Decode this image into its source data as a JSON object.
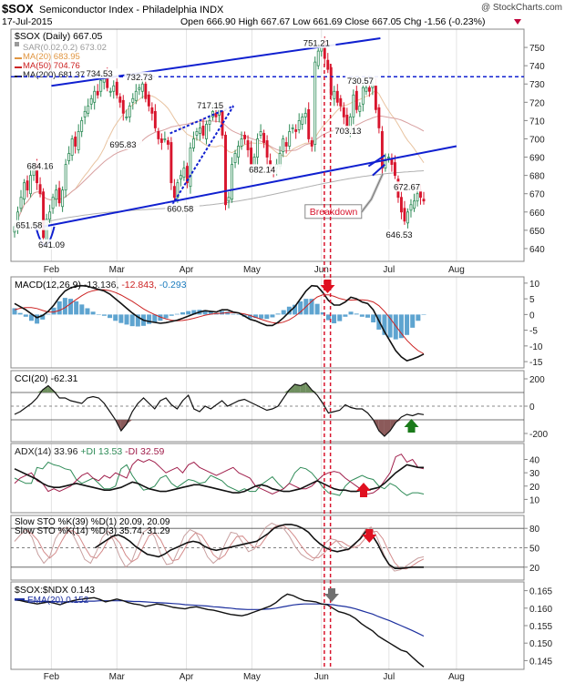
{
  "header": {
    "symbol": "$SOX",
    "name": "Semiconductor Index - Philadelphia  INDX",
    "date": "17-Jul-2015",
    "ohlc": "Open 666.90  High 667.67  Low 661.69  Close 667.05  Chg -1.56 (-0.23%)",
    "watermark": "@ StockCharts.com"
  },
  "colors": {
    "candle_up": "#2e8b57",
    "candle_down": "#d8152d",
    "trendline": "#1020d0",
    "annotation": "#d8152d",
    "macd_hist": "#5ea4d0",
    "cci_fill_pos": "#6f8f5f",
    "cci_fill_neg": "#8b5a5a",
    "plus_di": "#2e8b57",
    "minus_di": "#a01e4b",
    "ema": "#1c2f9e",
    "sto_slow": "#7a0000",
    "sto_signal": "#d48a8a"
  },
  "chart_data": [
    {
      "type": "candlestick",
      "title": "$SOX (Daily) 667.05",
      "legend": [
        {
          "text": "SAR(0.02,0.2) 673.02",
          "color": "#999999"
        },
        {
          "text": "MA(20) 683.95",
          "color": "#e09540"
        },
        {
          "text": "MA(50) 704.76",
          "color": "#cc2222"
        },
        {
          "text": "MA(200) 681.37",
          "color": "#222222"
        }
      ],
      "x_ticks": [
        "Feb",
        "Mar",
        "Apr",
        "May",
        "Jun",
        "Jul",
        "Aug"
      ],
      "ylim": [
        633,
        760
      ],
      "y_ticks": [
        640,
        650,
        660,
        670,
        680,
        690,
        700,
        710,
        720,
        730,
        740,
        750
      ],
      "price_labels": [
        "651.58",
        "684.16",
        "641.09",
        "734.53",
        "732.73",
        "695.83",
        "717.15",
        "660.58",
        "682.14",
        "751.21",
        "730.57",
        "703.13",
        "672.67",
        "646.53"
      ],
      "annotations": [
        "Breakdown"
      ],
      "horizontal_line": 734,
      "closes": [
        652,
        660,
        668,
        676,
        672,
        680,
        684,
        676,
        670,
        646,
        656,
        660,
        668,
        672,
        665,
        672,
        686,
        692,
        700,
        696,
        704,
        710,
        715,
        718,
        722,
        726,
        724,
        732,
        734,
        728,
        726,
        729,
        724,
        720,
        714,
        712,
        718,
        722,
        726,
        728,
        730,
        722,
        718,
        714,
        706,
        700,
        698,
        700,
        697,
        676,
        668,
        676,
        680,
        684,
        676,
        695,
        700,
        704,
        706,
        702,
        708,
        710,
        715,
        712,
        717,
        702,
        664,
        668,
        686,
        692,
        696,
        700,
        700,
        694,
        686,
        690,
        700,
        704,
        698,
        690,
        684,
        682,
        686,
        692,
        700,
        696,
        704,
        706,
        704,
        710,
        712,
        714,
        700,
        696,
        742,
        748,
        751,
        744,
        738,
        724,
        726,
        720,
        718,
        712,
        706,
        712,
        724,
        716,
        718,
        728,
        728,
        726,
        730,
        716,
        706,
        684,
        688,
        690,
        686,
        680,
        668,
        660,
        655,
        660,
        664,
        666,
        670,
        668,
        666
      ]
    },
    {
      "type": "line",
      "title": "MACD(12,26,9)",
      "values_text": "-13.136, -12.843, -0.293",
      "value_colors": [
        "#222222",
        "#cc2222",
        "#1a7bbd"
      ],
      "series": [
        {
          "name": "MACD"
        },
        {
          "name": "Signal"
        },
        {
          "name": "Histogram"
        }
      ],
      "ylim": [
        -17,
        12
      ],
      "y_ticks": [
        10,
        5,
        0,
        -5,
        -10,
        -15
      ],
      "macd": [
        3.5,
        2.5,
        1.5,
        0.2,
        -1,
        -0.3,
        1,
        3,
        5.5,
        7.5,
        8.5,
        9,
        9.2,
        9,
        8.5,
        8,
        7.5,
        6.5,
        5,
        3.5,
        2,
        0.5,
        -0.8,
        -1.8,
        -2.2,
        -2.5,
        -2.8,
        -2.6,
        -2.2,
        -1.8,
        -1.2,
        -0.5,
        0.2,
        0.8,
        1.2,
        1,
        0.8,
        1.5,
        1.5,
        0.8,
        0.5,
        -0.5,
        -1.5,
        -2,
        -2.8,
        -3.5,
        -3.5,
        -2.5,
        -1,
        0.8,
        2.5,
        5,
        7.5,
        9.2,
        9,
        7,
        4.5,
        3,
        3,
        4,
        5.5,
        5,
        4,
        3.5,
        1.5,
        -2,
        -5.5,
        -8.5,
        -11.5,
        -13.5,
        -14.7,
        -14.2,
        -13.5,
        -12.6
      ],
      "signal": [
        1.5,
        2,
        2.2,
        2.2,
        1.9,
        1.3,
        0.8,
        0.8,
        1.3,
        2.2,
        3.5,
        4.8,
        6,
        7,
        7.6,
        7.9,
        7.9,
        7.6,
        7,
        6.2,
        5.2,
        4.2,
        3,
        1.8,
        0.8,
        0,
        -0.8,
        -1.4,
        -1.8,
        -2,
        -1.9,
        -1.6,
        -1.2,
        -0.7,
        -0.2,
        0.1,
        0.3,
        0.4,
        0.6,
        0.6,
        0.5,
        0.2,
        -0.3,
        -0.9,
        -1.5,
        -2.1,
        -2.6,
        -2.8,
        -2.4,
        -1.7,
        -0.6,
        0.8,
        2.5,
        4.2,
        5.6,
        6.3,
        6.3,
        5.8,
        5.1,
        4.7,
        4.6,
        4.7,
        4.7,
        4.5,
        4,
        2.8,
        1,
        -1.2,
        -3.6,
        -6,
        -8.2,
        -10,
        -11.5,
        -12.5
      ]
    },
    {
      "type": "line",
      "title": "CCI(20)",
      "values_text": "-62.31",
      "ylim": [
        -260,
        260
      ],
      "y_ticks": [
        200,
        0,
        -200
      ],
      "reference_lines": [
        100,
        -100
      ],
      "series": [
        {
          "name": "CCI",
          "values": [
            -60,
            -40,
            -10,
            20,
            60,
            120,
            150,
            110,
            60,
            60,
            40,
            30,
            20,
            60,
            70,
            60,
            20,
            -40,
            -100,
            -180,
            -130,
            -40,
            20,
            60,
            20,
            -20,
            40,
            60,
            10,
            -20,
            40,
            80,
            -20,
            -40,
            0,
            -20,
            10,
            40,
            0,
            20,
            40,
            50,
            30,
            10,
            -10,
            -30,
            -20,
            0,
            60,
            120,
            160,
            150,
            170,
            120,
            80,
            20,
            -50,
            -40,
            -30,
            10,
            -10,
            -20,
            -20,
            -50,
            -100,
            -180,
            -220,
            -180,
            -120,
            -80,
            -60,
            -70,
            -55,
            -62
          ]
        }
      ]
    },
    {
      "type": "line",
      "title": "ADX(14)",
      "values_text": "ADX(14) 33.96  +DI 13.53  -DI 32.59",
      "value_colors": [
        "#222222",
        "#2e8b57",
        "#a01e4b"
      ],
      "series": [
        {
          "name": "ADX",
          "values": [
            33,
            31,
            29,
            27,
            25,
            22,
            20,
            19,
            19,
            20,
            21,
            22,
            21,
            20,
            19,
            18,
            17,
            17,
            18,
            19,
            21,
            23,
            22,
            20,
            18,
            17,
            16,
            16,
            17,
            18,
            19,
            20,
            21,
            21,
            20,
            19,
            18,
            17,
            16,
            15,
            15,
            16,
            18,
            20,
            21,
            20,
            18,
            17,
            16,
            16,
            17,
            18,
            20,
            22,
            24,
            22,
            20,
            18,
            17,
            17,
            16,
            16,
            17,
            17,
            18,
            19,
            22,
            26,
            30,
            33,
            36,
            35,
            34,
            34
          ]
        },
        {
          "name": "+DI",
          "values": [
            26,
            24,
            22,
            22,
            34,
            33,
            38,
            36,
            35,
            33,
            32,
            25,
            22,
            24,
            26,
            22,
            18,
            18,
            20,
            33,
            36,
            28,
            22,
            17,
            18,
            20,
            26,
            28,
            22,
            19,
            22,
            25,
            24,
            22,
            23,
            28,
            26,
            24,
            20,
            18,
            16,
            18,
            16,
            16,
            21,
            24,
            27,
            22,
            18,
            22,
            30,
            34,
            33,
            30,
            25,
            19,
            15,
            14,
            13,
            20,
            24,
            26,
            28,
            26,
            25,
            20,
            18,
            22,
            20,
            16,
            13,
            15,
            15,
            14
          ]
        },
        {
          "name": "-DI",
          "values": [
            22,
            26,
            28,
            30,
            24,
            22,
            16,
            18,
            16,
            18,
            20,
            24,
            28,
            30,
            26,
            24,
            28,
            26,
            30,
            28,
            26,
            36,
            40,
            38,
            40,
            38,
            34,
            30,
            32,
            34,
            30,
            36,
            38,
            34,
            32,
            30,
            28,
            30,
            32,
            34,
            30,
            28,
            26,
            20,
            18,
            16,
            14,
            16,
            18,
            22,
            20,
            18,
            18,
            20,
            24,
            28,
            30,
            31,
            30,
            26,
            23,
            20,
            17,
            14,
            15,
            18,
            24,
            30,
            42,
            44,
            38,
            40,
            34,
            33
          ]
        }
      ],
      "ylim": [
        0,
        52
      ],
      "y_ticks": [
        40,
        30,
        20,
        10
      ]
    },
    {
      "type": "line",
      "title": "Slow STO",
      "values_text": "Slow STO %K(39) %D(1) 20.09, 20.09",
      "values_text_2": "Slow STO %K(14) %D(3) 35.74, 31.29",
      "value_colors": [
        "#7a0000",
        "#d48a8a"
      ],
      "ylim": [
        0,
        100
      ],
      "y_ticks": [
        80,
        50,
        20
      ],
      "reference_lines": [
        80,
        50,
        20
      ],
      "series": [
        {
          "name": "%K(39)",
          "values": [
            null,
            null,
            null,
            null,
            null,
            null,
            null,
            null,
            null,
            null,
            null,
            null,
            null,
            null,
            50,
            56,
            62,
            68,
            70,
            66,
            60,
            52,
            46,
            40,
            38,
            36,
            40,
            46,
            50,
            54,
            58,
            60,
            58,
            52,
            48,
            46,
            48,
            50,
            52,
            54,
            56,
            58,
            60,
            66,
            72,
            80,
            84,
            86,
            86,
            84,
            80,
            74,
            64,
            56,
            50,
            46,
            44,
            46,
            48,
            56,
            64,
            76,
            70,
            56,
            38,
            24,
            18,
            18,
            19,
            20,
            20,
            20
          ]
        },
        {
          "name": "%K(14)",
          "values": [
            60,
            70,
            78,
            66,
            40,
            26,
            36,
            64,
            78,
            82,
            70,
            52,
            32,
            26,
            44,
            66,
            76,
            60,
            36,
            20,
            28,
            52,
            74,
            80,
            66,
            40,
            24,
            26,
            46,
            68,
            78,
            74,
            56,
            36,
            26,
            34,
            56,
            74,
            72,
            58,
            44,
            48,
            68,
            82,
            88,
            84,
            80,
            68,
            52,
            40,
            34,
            30,
            40,
            56,
            64,
            62,
            52,
            46,
            52,
            64,
            78,
            82,
            66,
            44,
            24,
            14,
            16,
            22,
            28,
            34,
            36
          ]
        }
      ]
    },
    {
      "type": "line",
      "title": "$SOX:$NDX 0.143",
      "legend": [
        {
          "text": "EMA(20) 0.152",
          "color": "#1c2f9e"
        }
      ],
      "ylim": [
        0.1425,
        0.1675
      ],
      "y_ticks": [
        0.165,
        0.16,
        0.155,
        0.15,
        0.145
      ],
      "y_tick_labels": [
        "0.165",
        "0.160",
        "0.155",
        "0.150",
        "0.145"
      ],
      "series": [
        {
          "name": "$SOX:$NDX",
          "values": [
            0.1625,
            0.1622,
            0.1618,
            0.1615,
            0.1612,
            0.1615,
            0.1618,
            0.1614,
            0.161,
            0.1616,
            0.162,
            0.1624,
            0.1626,
            0.1628,
            0.163,
            0.1625,
            0.1618,
            0.1622,
            0.1626,
            0.1622,
            0.1616,
            0.1612,
            0.161,
            0.1605,
            0.1608,
            0.1612,
            0.161,
            0.1606,
            0.1602,
            0.16,
            0.1598,
            0.1602,
            0.1604,
            0.16,
            0.1596,
            0.1594,
            0.159,
            0.1586,
            0.1582,
            0.158,
            0.1578,
            0.1582,
            0.1588,
            0.1594,
            0.16,
            0.1606,
            0.1616,
            0.163,
            0.164,
            0.1636,
            0.1628,
            0.1622,
            0.162,
            0.1618,
            0.1612,
            0.161,
            0.16,
            0.159,
            0.1586,
            0.158,
            0.157,
            0.1556,
            0.1545,
            0.1535,
            0.152,
            0.151,
            0.15,
            0.149,
            0.148,
            0.1475,
            0.146,
            0.1445,
            0.1432
          ]
        },
        {
          "name": "EMA(20)",
          "values": [
            0.1623,
            0.1622,
            0.1621,
            0.162,
            0.1619,
            0.1619,
            0.1619,
            0.1619,
            0.1618,
            0.1618,
            0.1618,
            0.1618,
            0.1619,
            0.162,
            0.162,
            0.1621,
            0.1621,
            0.1621,
            0.1621,
            0.1621,
            0.162,
            0.1619,
            0.1619,
            0.1618,
            0.1617,
            0.1616,
            0.1615,
            0.1614,
            0.1613,
            0.1612,
            0.161,
            0.1609,
            0.1608,
            0.1607,
            0.1606,
            0.1604,
            0.1603,
            0.1601,
            0.16,
            0.1598,
            0.1597,
            0.1596,
            0.1596,
            0.1596,
            0.1597,
            0.1598,
            0.16,
            0.1603,
            0.1606,
            0.1609,
            0.1611,
            0.1612,
            0.1612,
            0.1612,
            0.1612,
            0.1611,
            0.161,
            0.1607,
            0.1605,
            0.1602,
            0.1598,
            0.1593,
            0.1588,
            0.1583,
            0.1576,
            0.157,
            0.1564,
            0.1557,
            0.155,
            0.1543,
            0.1536,
            0.1528,
            0.152
          ]
        }
      ]
    }
  ]
}
